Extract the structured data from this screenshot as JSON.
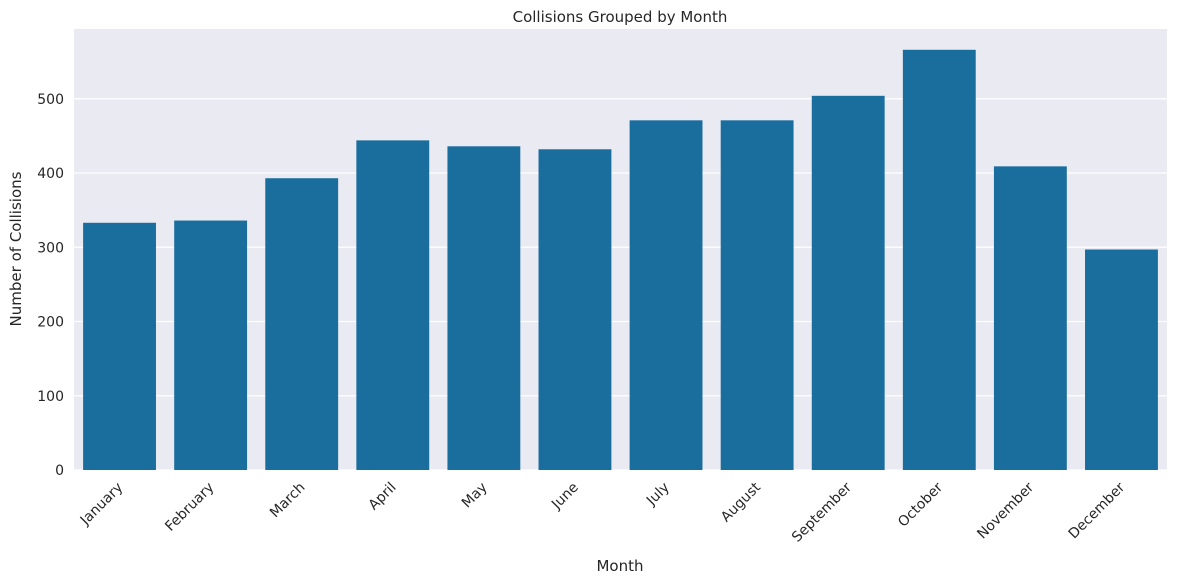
{
  "chart_data": {
    "type": "bar",
    "title": "Collisions Grouped by Month",
    "xlabel": "Month",
    "ylabel": "Number of Collisions",
    "categories": [
      "January",
      "February",
      "March",
      "April",
      "May",
      "June",
      "July",
      "August",
      "September",
      "October",
      "November",
      "December"
    ],
    "values": [
      333,
      336,
      393,
      444,
      436,
      432,
      471,
      471,
      504,
      566,
      409,
      297
    ],
    "ylim": [
      0,
      594
    ],
    "yticks": [
      0,
      100,
      200,
      300,
      400,
      500
    ],
    "grid": true,
    "x_tick_rotation": "45 degrees",
    "colors": {
      "bar": "#1a6e9e",
      "background": "#eaeaf2",
      "grid": "#ffffff",
      "text": "#262626"
    }
  }
}
